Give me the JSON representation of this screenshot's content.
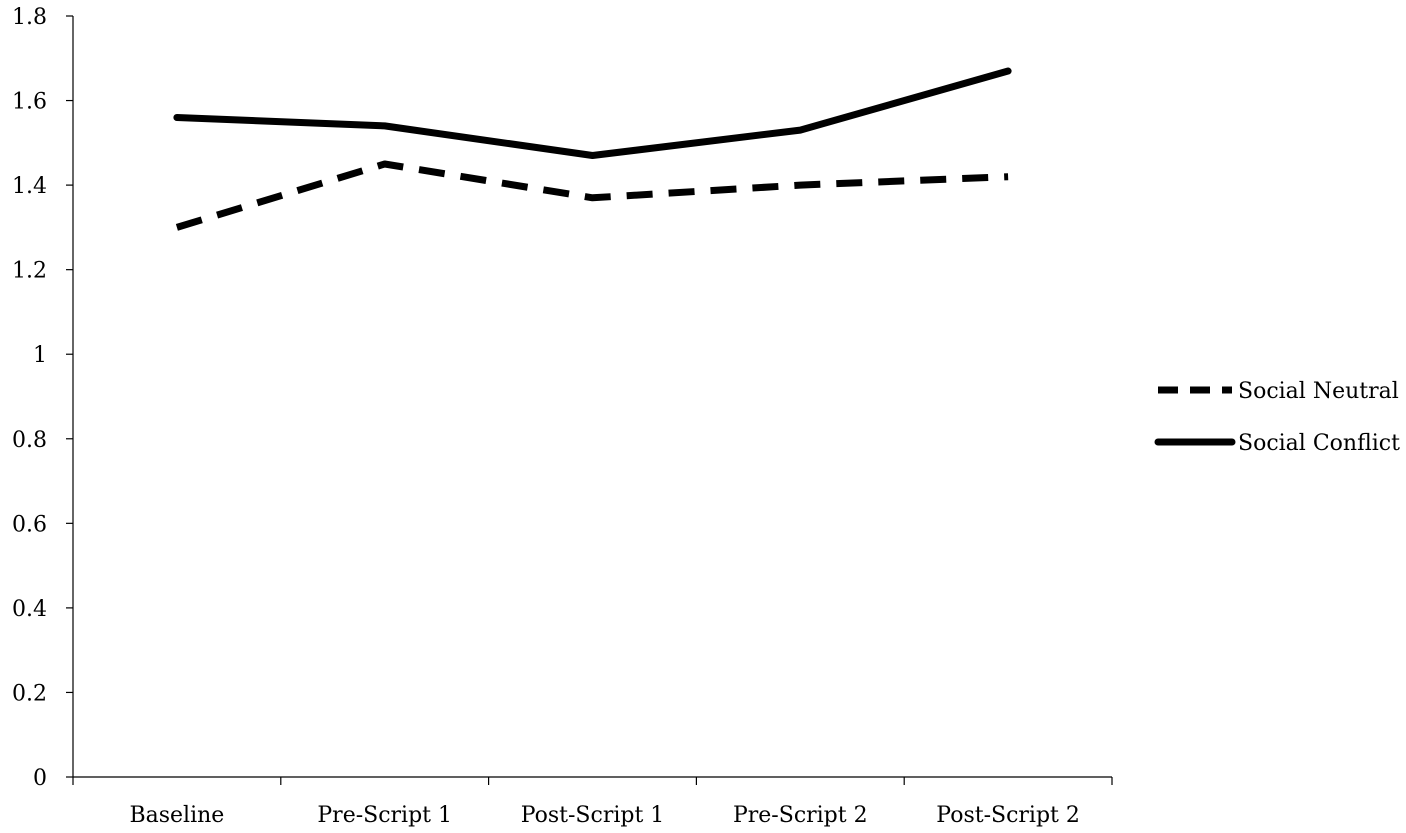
{
  "chart_data": {
    "type": "line",
    "title": "",
    "xlabel": "",
    "ylabel": "",
    "categories": [
      "Baseline",
      "Pre-Script 1",
      "Post-Script 1",
      "Pre-Script 2",
      "Post-Script 2"
    ],
    "ylim": [
      0,
      1.8
    ],
    "yticks": [
      0,
      0.2,
      0.4,
      0.6,
      0.8,
      1,
      1.2,
      1.4,
      1.6,
      1.8
    ],
    "ytick_labels": [
      "0",
      "0.2",
      "0.4",
      "0.6",
      "0.8",
      "1",
      "1.2",
      "1.4",
      "1.6",
      "1.8"
    ],
    "grid": false,
    "legend_position": "right",
    "series": [
      {
        "name": "Social Neutral",
        "values": [
          1.3,
          1.45,
          1.37,
          1.4,
          1.42
        ],
        "style": "dashed",
        "color": "#000000"
      },
      {
        "name": "Social Conflict",
        "values": [
          1.56,
          1.54,
          1.47,
          1.53,
          1.67
        ],
        "style": "solid",
        "color": "#000000"
      }
    ]
  }
}
